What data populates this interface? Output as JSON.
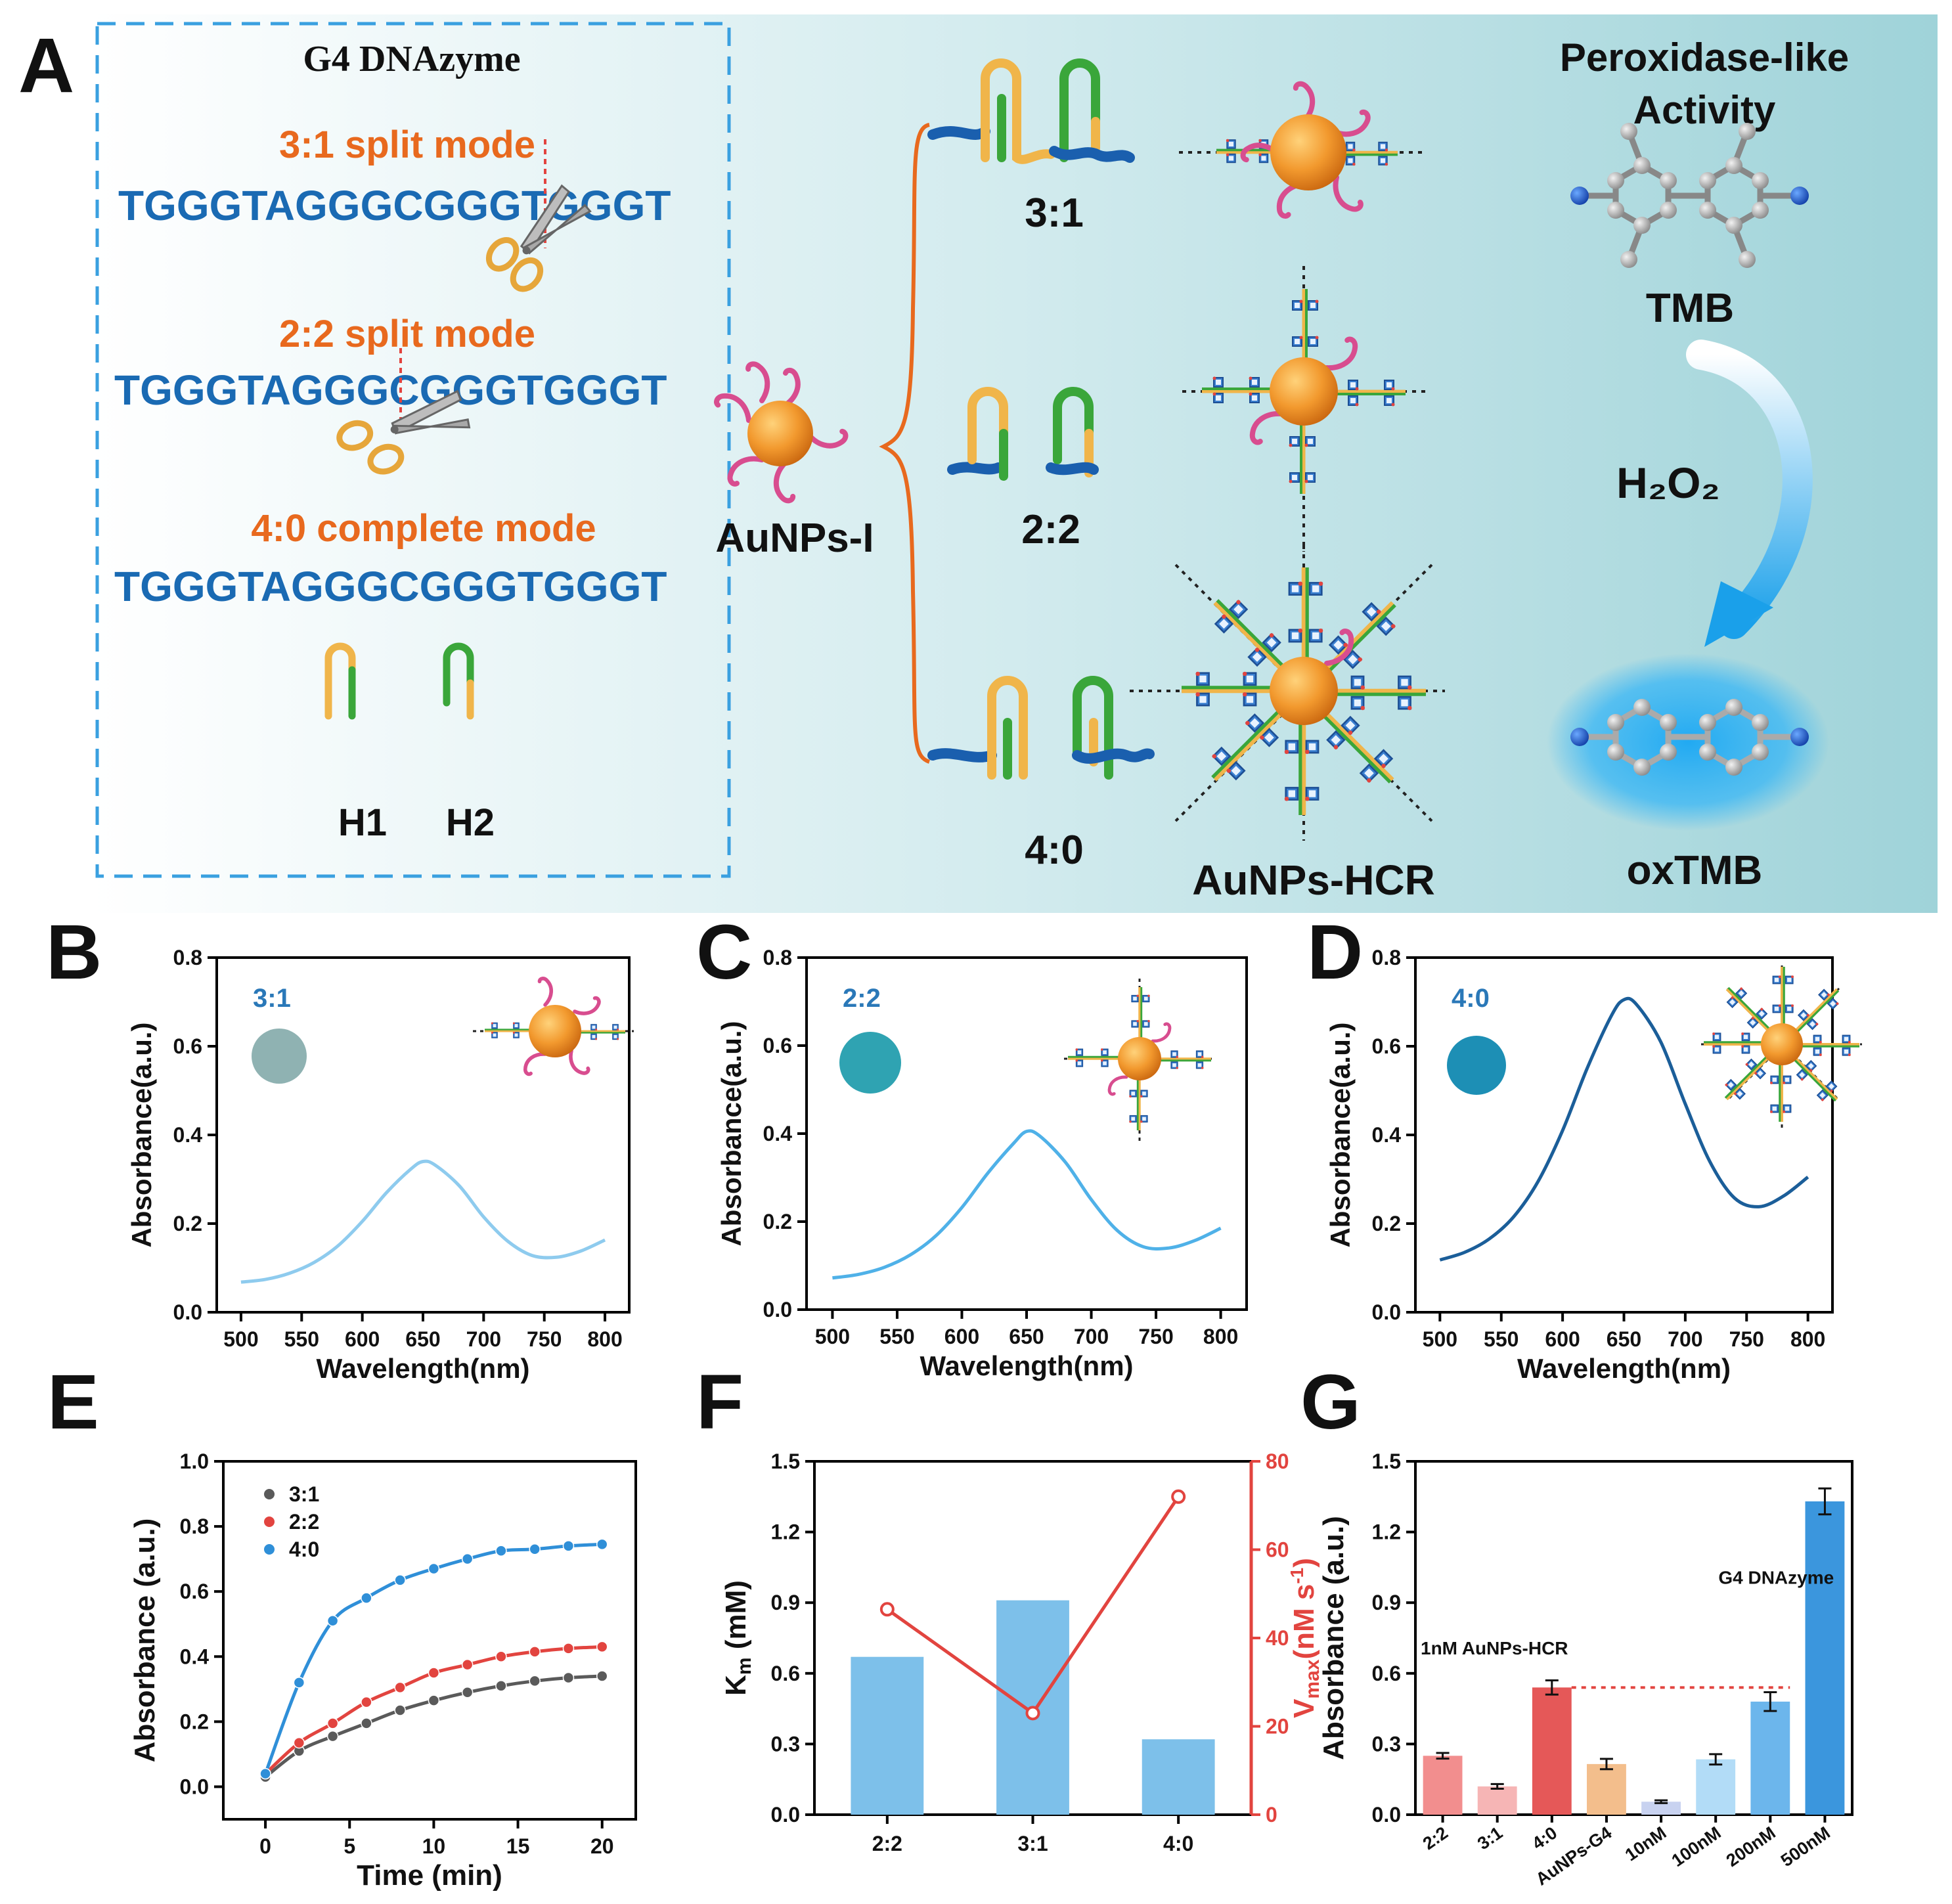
{
  "panel_labels": {
    "a": "A",
    "b": "B",
    "c": "C",
    "d": "D",
    "e": "E",
    "f": "F",
    "g": "G"
  },
  "colors": {
    "blue_seq": "#1a6ab3",
    "orange_mode": "#e8691e",
    "light_blue": "#8ecbee",
    "mid_blue": "#4fb1e8",
    "dark_blue": "#1b5e99",
    "red": "#e2443f",
    "gray": "#5a5a5a",
    "bar_blue": "#7dc0ea",
    "panel_bg_end": "#9fd3d9"
  },
  "scheme": {
    "box_title": "G4 DNAzyme",
    "mode_31": "3:1 split mode",
    "seq_31_a": "TGGGTAGGGCGGG",
    "seq_31_b": "TGGGT",
    "mode_22": "2:2 split mode",
    "seq_22_a": "TGGGTAGGG",
    "seq_22_b": "CGGGTGGGT",
    "mode_40": "4:0 complete mode",
    "seq_40": "TGGGTAGGGCGGGTGGGT",
    "h1": "H1",
    "h2": "H2",
    "aunps_i": "AuNPs-I",
    "ratio_31": "3:1",
    "ratio_22": "2:2",
    "ratio_40": "4:0",
    "aunps_hcr": "AuNPs-HCR",
    "perox_line1": "Peroxidase-like",
    "perox_line2": "Activity",
    "tmb": "TMB",
    "h2o2": "H₂O₂",
    "oxtmb": "oxTMB"
  },
  "chart_data": [
    {
      "id": "B",
      "type": "line",
      "title": "",
      "xlabel": "Wavelength(nm)",
      "ylabel": "Absorbance(a.u.)",
      "xlim": [
        480,
        820
      ],
      "ylim": [
        0,
        0.8
      ],
      "xticks": [
        500,
        550,
        600,
        650,
        700,
        750,
        800
      ],
      "yticks": [
        0.0,
        0.2,
        0.4,
        0.6,
        0.8
      ],
      "inset_label": "3:1",
      "series": [
        {
          "name": "3:1",
          "color": "#8ecbee",
          "x": [
            500,
            520,
            540,
            560,
            580,
            600,
            620,
            640,
            650,
            660,
            680,
            700,
            720,
            740,
            760,
            780,
            800
          ],
          "y": [
            0.068,
            0.074,
            0.088,
            0.112,
            0.15,
            0.205,
            0.27,
            0.323,
            0.34,
            0.332,
            0.285,
            0.215,
            0.16,
            0.128,
            0.124,
            0.138,
            0.163
          ]
        }
      ]
    },
    {
      "id": "C",
      "type": "line",
      "title": "",
      "xlabel": "Wavelength(nm)",
      "ylabel": "Absorbance(a.u.)",
      "xlim": [
        480,
        820
      ],
      "ylim": [
        0,
        0.8
      ],
      "xticks": [
        500,
        550,
        600,
        650,
        700,
        750,
        800
      ],
      "yticks": [
        0.0,
        0.2,
        0.4,
        0.6,
        0.8
      ],
      "inset_label": "2:2",
      "series": [
        {
          "name": "2:2",
          "color": "#4fb1e8",
          "x": [
            500,
            520,
            540,
            560,
            580,
            600,
            620,
            640,
            650,
            660,
            680,
            700,
            720,
            740,
            760,
            780,
            800
          ],
          "y": [
            0.072,
            0.08,
            0.096,
            0.124,
            0.168,
            0.232,
            0.31,
            0.378,
            0.405,
            0.395,
            0.335,
            0.25,
            0.18,
            0.143,
            0.14,
            0.157,
            0.185
          ]
        }
      ]
    },
    {
      "id": "D",
      "type": "line",
      "title": "",
      "xlabel": "Wavelength(nm)",
      "ylabel": "Absorbance(a.u.)",
      "xlim": [
        480,
        820
      ],
      "ylim": [
        0,
        0.8
      ],
      "xticks": [
        500,
        550,
        600,
        650,
        700,
        750,
        800
      ],
      "yticks": [
        0.0,
        0.2,
        0.4,
        0.6,
        0.8
      ],
      "inset_label": "4:0",
      "series": [
        {
          "name": "4:0",
          "color": "#1b5e99",
          "x": [
            500,
            520,
            540,
            560,
            580,
            600,
            620,
            640,
            650,
            660,
            680,
            700,
            720,
            740,
            760,
            780,
            800
          ],
          "y": [
            0.118,
            0.135,
            0.165,
            0.215,
            0.295,
            0.41,
            0.55,
            0.67,
            0.705,
            0.695,
            0.61,
            0.47,
            0.34,
            0.258,
            0.238,
            0.262,
            0.305
          ]
        }
      ]
    },
    {
      "id": "E",
      "type": "scatter",
      "title": "",
      "xlabel": "Time (min)",
      "ylabel": "Absorbance (a.u.)",
      "xlim": [
        -2.5,
        22
      ],
      "ylim": [
        -0.1,
        1.0
      ],
      "xticks": [
        0,
        5,
        10,
        15,
        20
      ],
      "yticks": [
        0.0,
        0.2,
        0.4,
        0.6,
        0.8,
        1.0
      ],
      "legend": "top-left",
      "series": [
        {
          "name": "3:1",
          "color": "#5a5a5a",
          "x": [
            0,
            2,
            4,
            6,
            8,
            10,
            12,
            14,
            16,
            18,
            20
          ],
          "y": [
            0.03,
            0.11,
            0.155,
            0.195,
            0.235,
            0.265,
            0.29,
            0.31,
            0.325,
            0.335,
            0.34
          ]
        },
        {
          "name": "2:2",
          "color": "#e2443f",
          "x": [
            0,
            2,
            4,
            6,
            8,
            10,
            12,
            14,
            16,
            18,
            20
          ],
          "y": [
            0.04,
            0.135,
            0.195,
            0.26,
            0.305,
            0.35,
            0.375,
            0.4,
            0.415,
            0.425,
            0.43
          ]
        },
        {
          "name": "4:0",
          "color": "#2f8fd8",
          "x": [
            0,
            2,
            4,
            6,
            8,
            10,
            12,
            14,
            16,
            18,
            20
          ],
          "y": [
            0.04,
            0.32,
            0.51,
            0.58,
            0.635,
            0.67,
            0.7,
            0.725,
            0.73,
            0.74,
            0.745
          ]
        }
      ]
    },
    {
      "id": "F",
      "type": "bar",
      "title": "",
      "xlabel": "",
      "ylabel": "Km (mM)",
      "ylabel2": "Vmax(nM s-1)",
      "categories": [
        "2:2",
        "3:1",
        "4:0"
      ],
      "ylim": [
        0,
        1.5
      ],
      "ylim2": [
        0,
        80
      ],
      "yticks": [
        0.0,
        0.3,
        0.6,
        0.9,
        1.2,
        1.5
      ],
      "yticks2": [
        0,
        20,
        40,
        60,
        80
      ],
      "series": [
        {
          "name": "Km",
          "color": "#7dc0ea",
          "axis": "left",
          "values": [
            0.67,
            0.91,
            0.32
          ]
        },
        {
          "name": "Vmax",
          "color": "#e2443f",
          "axis": "right",
          "values": [
            46.5,
            23.0,
            72.0
          ]
        }
      ]
    },
    {
      "id": "G",
      "type": "bar",
      "title": "",
      "xlabel": "",
      "ylabel": "Absorbance (a.u.)",
      "categories": [
        "2:2",
        "3:1",
        "4:0",
        "AuNPs-G4",
        "10nM",
        "100nM",
        "200nM",
        "500nM"
      ],
      "ylim": [
        0,
        1.5
      ],
      "yticks": [
        0.0,
        0.3,
        0.6,
        0.9,
        1.2,
        1.5
      ],
      "values": [
        0.25,
        0.12,
        0.54,
        0.215,
        0.055,
        0.235,
        0.48,
        1.33
      ],
      "errors": [
        0.012,
        0.01,
        0.03,
        0.022,
        0.006,
        0.022,
        0.04,
        0.055
      ],
      "colors": [
        "#f28e8e",
        "#f6b5b5",
        "#e55858",
        "#f3be8c",
        "#c8d2f0",
        "#b2dcf7",
        "#6cb6ec",
        "#3b96dd"
      ],
      "annotations": [
        "1nM AuNPs-HCR",
        "G4 DNAzyme"
      ],
      "reference_value": 0.54
    }
  ]
}
